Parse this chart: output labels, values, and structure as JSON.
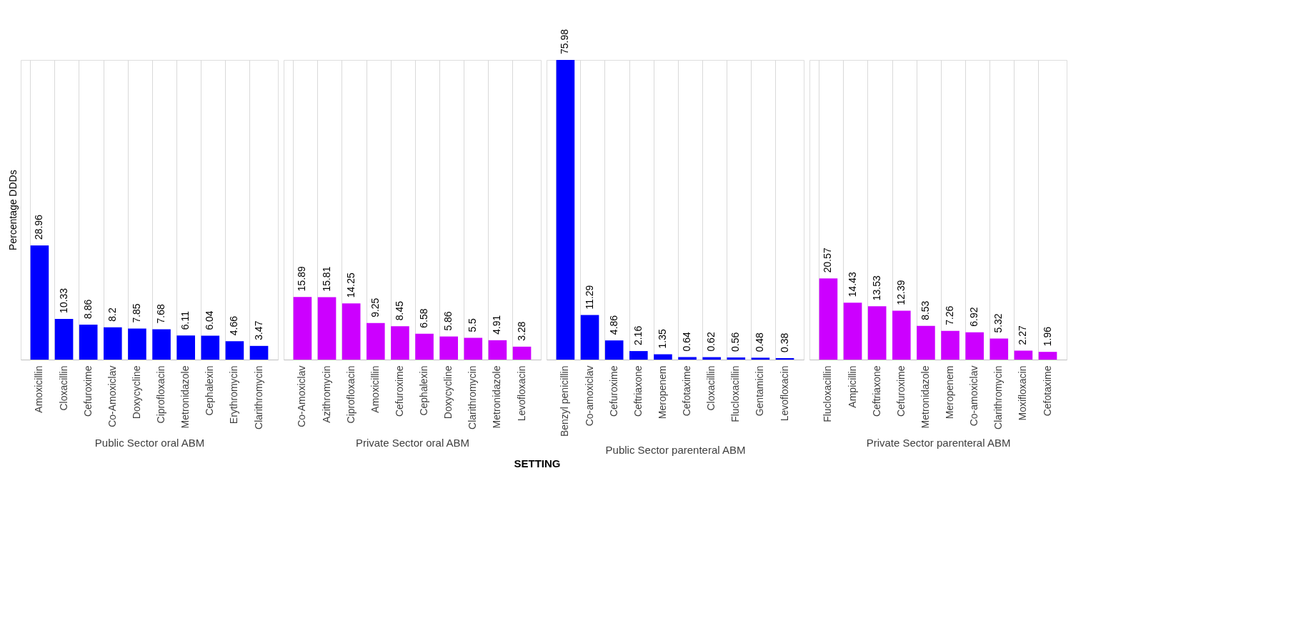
{
  "chart_data": [
    {
      "type": "bar",
      "ylabel": "Percentage DDDs",
      "xlabel": "Public Sector  oral ABM",
      "annotations": [
        "SETTING"
      ],
      "grid": "x",
      "data_labels": true,
      "color": "#0000ff",
      "categories": [
        "Amoxicillin",
        "Cloxacillin",
        "Cefuroxime",
        "Co-Amoxiclav",
        "Doxycycline",
        "Ciprofloxacin",
        "Metronidazole",
        "Cephalexin",
        "Erythromycin",
        "Clarithromycin"
      ],
      "values": [
        28.96,
        10.33,
        8.86,
        8.2,
        7.85,
        7.68,
        6.11,
        6.04,
        4.66,
        3.47
      ]
    },
    {
      "type": "bar",
      "xlabel": "Private Sector  oral ABM",
      "grid": "x",
      "data_labels": true,
      "color": "#cc00ff",
      "categories": [
        "Co-Amoxiclav",
        "Azithromycin",
        "Ciprofloxacin",
        "Amoxicillin",
        "Cefuroxime",
        "Cephalexin",
        "Doxycycline",
        "Clarithromycin",
        "Metronidazole",
        "Levofloxacin"
      ],
      "values": [
        15.89,
        15.81,
        14.25,
        9.25,
        8.45,
        6.58,
        5.86,
        5.5,
        4.91,
        3.28
      ]
    },
    {
      "type": "bar",
      "xlabel": "Public Sector parenteral ABM",
      "grid": "x",
      "data_labels": true,
      "color": "#0000ff",
      "categories": [
        "Benzyl penicillin",
        "Co-amoxiclav",
        "Cefuroxime",
        "Ceftriaxone",
        "Meropenem",
        "Cefotaxime",
        "Cloxacillin",
        "Flucloxacillin",
        "Gentamicin",
        "Levofloxacin"
      ],
      "values": [
        75.98,
        11.29,
        4.86,
        2.16,
        1.35,
        0.64,
        0.62,
        0.56,
        0.48,
        0.38
      ]
    },
    {
      "type": "bar",
      "xlabel": "Private Sector parenteral ABM",
      "grid": "x",
      "data_labels": true,
      "color": "#cc00ff",
      "categories": [
        "Flucloxacillin",
        "Ampicillin",
        "Ceftriaxone",
        "Cefuroxime",
        "Metronidazole",
        "Meropenem",
        "Co-amoxiclav",
        "Clarithromycin",
        "Moxifloxacin",
        "Cefotaxime"
      ],
      "values": [
        20.57,
        14.43,
        13.53,
        12.39,
        8.53,
        7.26,
        6.92,
        5.32,
        2.27,
        1.96
      ]
    }
  ]
}
